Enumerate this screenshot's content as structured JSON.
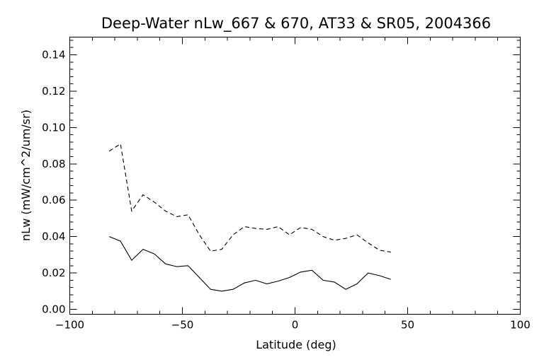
{
  "chart_data": {
    "type": "line",
    "title": "Deep-Water nLw_667 & 670, AT33 & SR05, 2004366",
    "xlabel": "Latitude (deg)",
    "ylabel": "nLw (mW/cm^2/um/sr)",
    "xlim": [
      -100,
      100
    ],
    "ylim": [
      0.0,
      0.15
    ],
    "x_ticks": [
      -100,
      -50,
      0,
      50,
      100
    ],
    "x_tick_labels": [
      "−100",
      "−50",
      "0",
      "50",
      "100"
    ],
    "y_ticks": [
      0.0,
      0.02,
      0.04,
      0.06,
      0.08,
      0.1,
      0.12,
      0.14
    ],
    "y_tick_labels": [
      "0.00",
      "0.02",
      "0.04",
      "0.06",
      "0.08",
      "0.10",
      "0.12",
      "0.14"
    ],
    "grid": false,
    "series": [
      {
        "style": "solid",
        "x": [
          -82.5,
          -77.5,
          -72.5,
          -67.5,
          -62.5,
          -57.5,
          -52.5,
          -47.5,
          -42.5,
          -37.5,
          -32.5,
          -27.5,
          -22.5,
          -17.5,
          -12.5,
          -7.5,
          -2.5,
          2.5,
          7.5,
          12.5,
          17.5,
          22.5,
          27.5,
          32.5,
          37.5,
          42.5
        ],
        "values": [
          0.04,
          0.0375,
          0.027,
          0.033,
          0.0305,
          0.025,
          0.0235,
          0.024,
          0.0175,
          0.011,
          0.01,
          0.011,
          0.0145,
          0.016,
          0.014,
          0.0155,
          0.0175,
          0.0205,
          0.0215,
          0.016,
          0.015,
          0.011,
          0.014,
          0.02,
          0.0185,
          0.0165
        ]
      },
      {
        "style": "dashed",
        "x": [
          -82.5,
          -77.5,
          -72.5,
          -67.5,
          -62.5,
          -57.5,
          -52.5,
          -47.5,
          -42.5,
          -37.5,
          -32.5,
          -27.5,
          -22.5,
          -17.5,
          -12.5,
          -7.5,
          -2.5,
          2.5,
          7.5,
          12.5,
          17.5,
          22.5,
          27.5,
          32.5,
          37.5,
          42.5
        ],
        "values": [
          0.087,
          0.091,
          0.054,
          0.063,
          0.059,
          0.054,
          0.051,
          0.052,
          0.041,
          0.032,
          0.033,
          0.041,
          0.0455,
          0.0445,
          0.044,
          0.0455,
          0.041,
          0.045,
          0.044,
          0.04,
          0.038,
          0.039,
          0.041,
          0.0365,
          0.0325,
          0.0315
        ]
      }
    ]
  }
}
